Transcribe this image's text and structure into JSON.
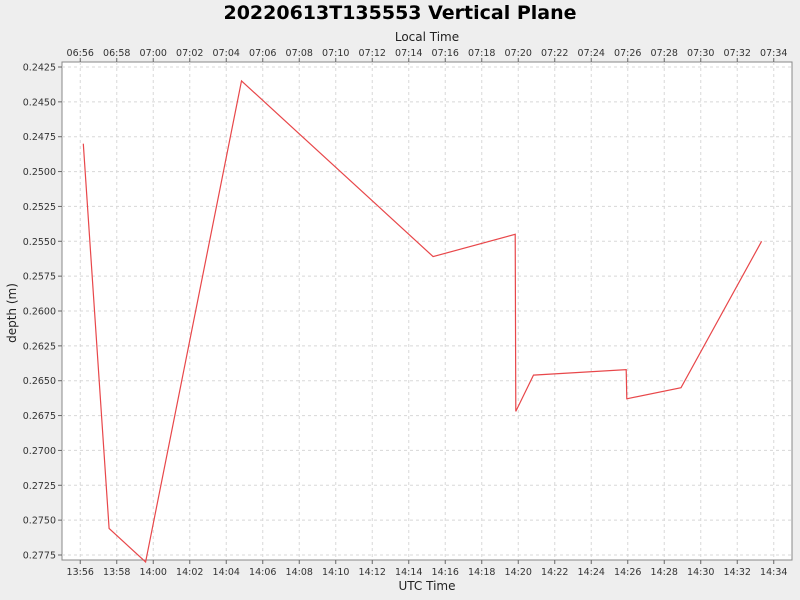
{
  "chart_data": {
    "type": "line",
    "title": "20220613T135553 Vertical Plane",
    "xlabel": "UTC Time",
    "x2label": "Local Time",
    "ylabel": "depth (m)",
    "y_inverted": true,
    "ylim": [
      0.2425,
      0.2775
    ],
    "yticks": [
      "0.2425",
      "0.2450",
      "0.2475",
      "0.2500",
      "0.2525",
      "0.2550",
      "0.2575",
      "0.2600",
      "0.2625",
      "0.2650",
      "0.2675",
      "0.2700",
      "0.2725",
      "0.2750",
      "0.2775"
    ],
    "xlim_minutes_utc": [
      "13:55",
      "14:35"
    ],
    "xticks_utc": [
      "13:56",
      "13:58",
      "14:00",
      "14:02",
      "14:04",
      "14:06",
      "14:08",
      "14:10",
      "14:12",
      "14:14",
      "14:16",
      "14:18",
      "14:20",
      "14:22",
      "14:24",
      "14:26",
      "14:28",
      "14:30",
      "14:32",
      "14:34"
    ],
    "xticks_local": [
      "06:56",
      "06:58",
      "07:00",
      "07:02",
      "07:04",
      "07:06",
      "07:08",
      "07:10",
      "07:12",
      "07:14",
      "07:16",
      "07:18",
      "07:20",
      "07:22",
      "07:24",
      "07:26",
      "07:28",
      "07:30",
      "07:32",
      "07:34"
    ],
    "grid": true,
    "series": [
      {
        "color": "#e8474a",
        "points": [
          {
            "x": "13:56:10",
            "y": 0.248
          },
          {
            "x": "13:57:35",
            "y": 0.2756
          },
          {
            "x": "13:59:35",
            "y": 0.278
          },
          {
            "x": "14:04:50",
            "y": 0.2435
          },
          {
            "x": "14:15:20",
            "y": 0.2561
          },
          {
            "x": "14:19:50",
            "y": 0.2545
          },
          {
            "x": "14:19:52",
            "y": 0.2672
          },
          {
            "x": "14:20:50",
            "y": 0.2646
          },
          {
            "x": "14:25:55",
            "y": 0.2642
          },
          {
            "x": "14:25:57",
            "y": 0.2663
          },
          {
            "x": "14:28:55",
            "y": 0.2655
          },
          {
            "x": "14:33:20",
            "y": 0.255
          }
        ]
      }
    ]
  }
}
